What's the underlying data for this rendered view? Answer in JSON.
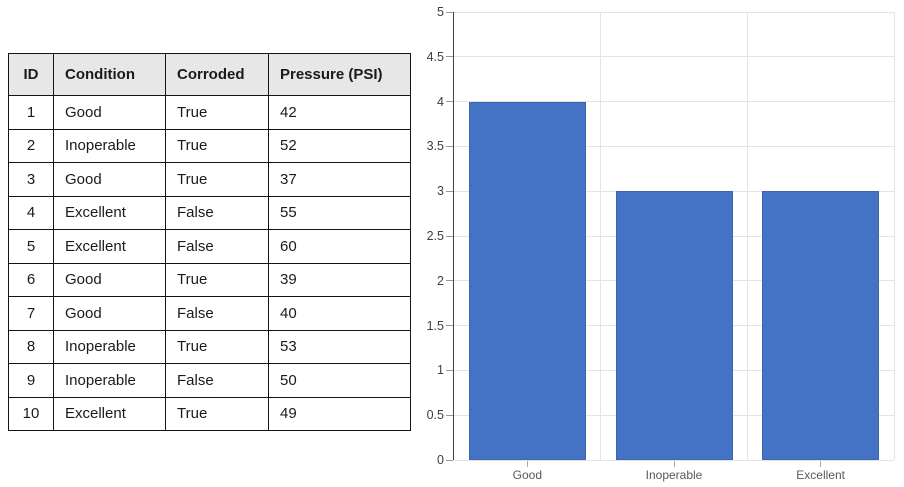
{
  "table": {
    "headers": [
      "ID",
      "Condition",
      "Corroded",
      "Pressure (PSI)"
    ],
    "rows": [
      [
        "1",
        "Good",
        "True",
        "42"
      ],
      [
        "2",
        "Inoperable",
        "True",
        "52"
      ],
      [
        "3",
        "Good",
        "True",
        "37"
      ],
      [
        "4",
        "Excellent",
        "False",
        "55"
      ],
      [
        "5",
        "Excellent",
        "False",
        "60"
      ],
      [
        "6",
        "Good",
        "True",
        "39"
      ],
      [
        "7",
        "Good",
        "False",
        "40"
      ],
      [
        "8",
        "Inoperable",
        "True",
        "53"
      ],
      [
        "9",
        "Inoperable",
        "False",
        "50"
      ],
      [
        "10",
        "Excellent",
        "True",
        "49"
      ]
    ],
    "header_bg": "#E8E7E7",
    "border_color": "#141414"
  },
  "chart_data": {
    "type": "bar",
    "categories": [
      "Good",
      "Inoperable",
      "Excellent"
    ],
    "values": [
      4,
      3,
      3
    ],
    "title": "",
    "xlabel": "",
    "ylabel": "",
    "ylim": [
      0,
      5
    ],
    "ytick_step": 0.5,
    "ytick_labels": [
      "0",
      "0.5",
      "1",
      "1.5",
      "2",
      "2.5",
      "3",
      "3.5",
      "4",
      "4.5",
      "5"
    ],
    "grid": true,
    "legend_position": "none",
    "bar_color": "#4472C4",
    "bar_border_color": "#3d65ae",
    "grid_color": "#E4E4E4",
    "axis_color": "#404040",
    "tick_label_color": "#3f3f3f",
    "category_label_color": "#595959"
  }
}
